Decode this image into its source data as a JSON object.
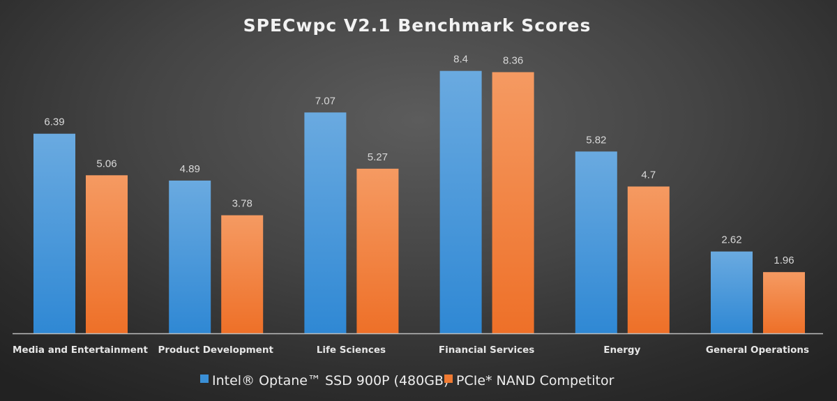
{
  "chart_data": {
    "type": "bar",
    "title": "SPECwpc V2.1 Benchmark Scores",
    "xlabel": "",
    "ylabel": "",
    "ylim": [
      0,
      10
    ],
    "grid": false,
    "legend_position": "bottom",
    "categories": [
      "Media and Entertainment",
      "Product Development",
      "Life Sciences",
      "Financial Services",
      "Energy",
      "General Operations"
    ],
    "series": [
      {
        "name": "Intel® Optane™ SSD 900P (480GB)",
        "color": "#3a8fd6",
        "values": [
          6.39,
          4.89,
          7.07,
          8.4,
          5.82,
          2.62
        ]
      },
      {
        "name": "PCIe* NAND Competitor",
        "color": "#f07a32",
        "values": [
          5.06,
          3.78,
          5.27,
          8.36,
          4.7,
          1.96
        ]
      }
    ]
  }
}
